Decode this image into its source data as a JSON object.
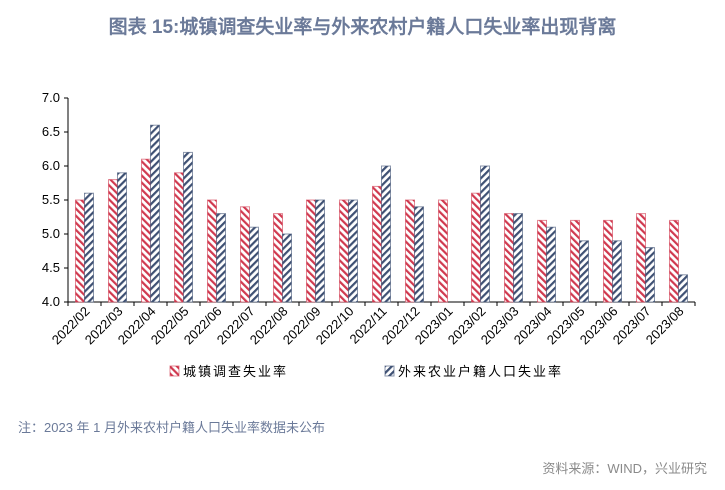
{
  "chart_data": {
    "type": "bar",
    "title": "图表 15:城镇调查失业率与外来农村户籍人口失业率出现背离",
    "categories": [
      "2022/02",
      "2022/03",
      "2022/04",
      "2022/05",
      "2022/06",
      "2022/07",
      "2022/08",
      "2022/09",
      "2022/10",
      "2022/11",
      "2022/12",
      "2023/01",
      "2023/02",
      "2023/03",
      "2023/04",
      "2023/05",
      "2023/06",
      "2023/07",
      "2023/08"
    ],
    "series": [
      {
        "name": "城镇调查失业率",
        "color": "#d0394f",
        "values": [
          5.5,
          5.8,
          6.1,
          5.9,
          5.5,
          5.4,
          5.3,
          5.5,
          5.5,
          5.7,
          5.5,
          5.5,
          5.6,
          5.3,
          5.2,
          5.2,
          5.2,
          5.3,
          5.2
        ]
      },
      {
        "name": "外来农业户籍人口失业率",
        "color": "#3e5073",
        "values": [
          5.6,
          5.9,
          6.6,
          6.2,
          5.3,
          5.1,
          5.0,
          5.5,
          5.5,
          6.0,
          5.4,
          null,
          6.0,
          5.3,
          5.1,
          4.9,
          4.9,
          4.8,
          4.4
        ]
      }
    ],
    "ylim": [
      4.0,
      7.0
    ],
    "yticks": [
      "4.0",
      "4.5",
      "5.0",
      "5.5",
      "6.0",
      "6.5",
      "7.0"
    ],
    "legend_position": "bottom",
    "xlabel": "",
    "ylabel": ""
  },
  "note": "注：2023 年 1 月外来农村户籍人口失业率数据未公布",
  "source": "资料来源：WIND，兴业研究"
}
